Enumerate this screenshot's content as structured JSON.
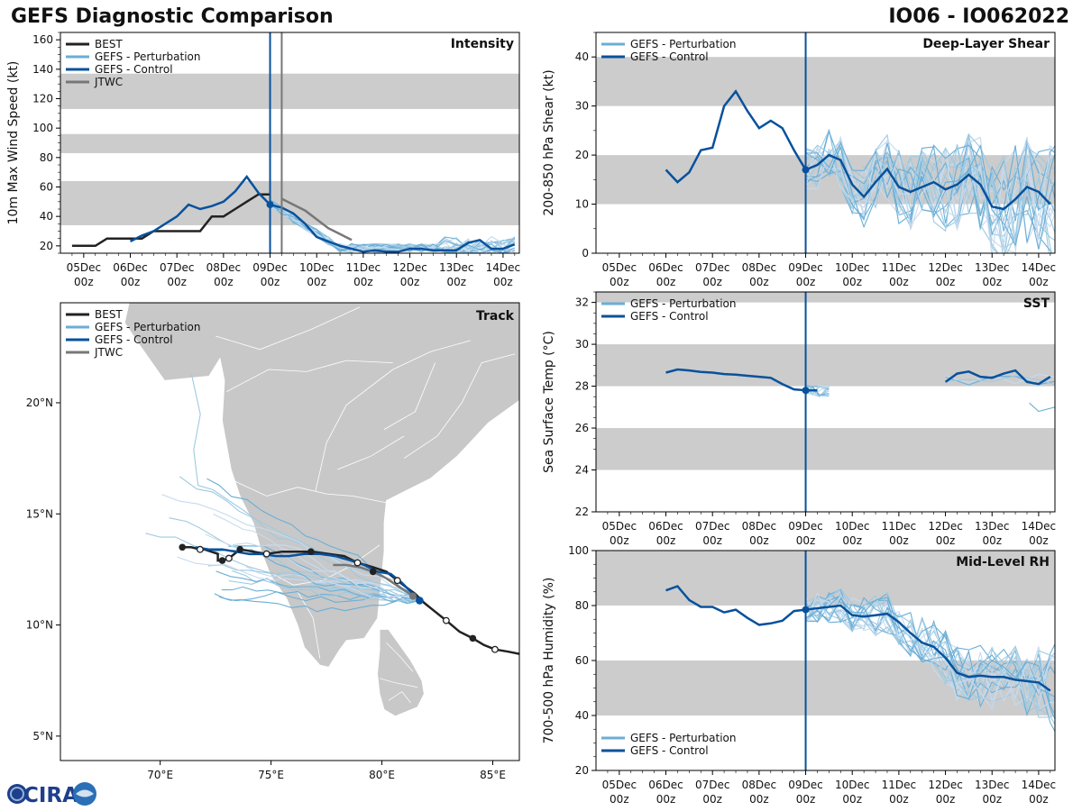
{
  "header": {
    "title": "GEFS Diagnostic Comparison",
    "storm_id": "IO06 - IO062022"
  },
  "logo": {
    "text": "CIRA"
  },
  "colors": {
    "best": "#222222",
    "perturbation": "#6baed6",
    "control": "#08519c",
    "jtwc": "#777777",
    "band": "#cccccc",
    "land": "#c8c8c8",
    "border": "#ffffff"
  },
  "time_axis": {
    "tick_labels": [
      [
        "05Dec",
        "00z"
      ],
      [
        "06Dec",
        "00z"
      ],
      [
        "07Dec",
        "00z"
      ],
      [
        "08Dec",
        "00z"
      ],
      [
        "09Dec",
        "00z"
      ],
      [
        "10Dec",
        "00z"
      ],
      [
        "11Dec",
        "00z"
      ],
      [
        "12Dec",
        "00z"
      ],
      [
        "13Dec",
        "00z"
      ],
      [
        "14Dec",
        "00z"
      ]
    ],
    "tick_days": [
      5,
      6,
      7,
      8,
      9,
      10,
      11,
      12,
      13,
      14
    ],
    "xlim": [
      4.5,
      14.35
    ],
    "init_day": 9.0
  },
  "chart_data": [
    {
      "id": "intensity",
      "type": "line",
      "title": "Intensity",
      "xlabel": "",
      "ylabel": "10m Max Wind Speed (kt)",
      "ylim": [
        15,
        165
      ],
      "yticks": [
        20,
        40,
        60,
        80,
        100,
        120,
        140,
        160
      ],
      "bands": [
        [
          34,
          64
        ],
        [
          83,
          96
        ],
        [
          113,
          137
        ]
      ],
      "vlines": [
        {
          "x": 9.0,
          "color": "control"
        },
        {
          "x": 9.25,
          "color": "jtwc"
        }
      ],
      "legend": [
        "BEST",
        "GEFS - Perturbation",
        "GEFS - Control",
        "JTWC"
      ],
      "series": [
        {
          "name": "BEST",
          "color": "best",
          "x": [
            4.75,
            5.0,
            5.25,
            5.5,
            5.75,
            6.0,
            6.25,
            6.5,
            6.75,
            7.0,
            7.25,
            7.5,
            7.75,
            8.0,
            8.25,
            8.5,
            8.75,
            9.0
          ],
          "values": [
            20,
            20,
            20,
            25,
            25,
            25,
            25,
            30,
            30,
            30,
            30,
            30,
            40,
            40,
            45,
            50,
            55,
            55
          ]
        },
        {
          "name": "GEFS - Control",
          "color": "control",
          "x": [
            6.0,
            6.25,
            6.5,
            6.75,
            7.0,
            7.25,
            7.5,
            7.75,
            8.0,
            8.25,
            8.5,
            8.75,
            9.0,
            9.25,
            9.5,
            9.75,
            10.0,
            10.25,
            10.5,
            10.75,
            11.0,
            11.25,
            11.5,
            11.75,
            12.0,
            12.25,
            12.5,
            12.75,
            13.0,
            13.25,
            13.5,
            13.75,
            14.0,
            14.25
          ],
          "values": [
            23,
            27,
            30,
            35,
            40,
            48,
            45,
            47,
            50,
            57,
            67,
            56,
            48,
            46,
            42,
            35,
            26,
            23,
            20,
            18,
            16,
            17,
            16,
            16,
            18,
            18,
            17,
            17,
            17,
            22,
            24,
            18,
            18,
            21
          ]
        },
        {
          "name": "JTWC",
          "color": "jtwc",
          "x": [
            9.25,
            9.5,
            9.75,
            10.0,
            10.25,
            10.5,
            10.75
          ],
          "values": [
            52,
            48,
            44,
            38,
            32,
            28,
            24
          ]
        }
      ],
      "perturbation_members": 20
    },
    {
      "id": "shear",
      "type": "line",
      "title": "Deep-Layer Shear",
      "xlabel": "",
      "ylabel": "200-850 hPa Shear (kt)",
      "ylim": [
        0,
        45
      ],
      "yticks": [
        0,
        10,
        20,
        30,
        40
      ],
      "bands": [
        [
          10,
          20
        ],
        [
          30,
          40
        ]
      ],
      "vlines": [
        {
          "x": 9.0,
          "color": "control"
        }
      ],
      "legend": [
        "GEFS - Perturbation",
        "GEFS - Control"
      ],
      "series": [
        {
          "name": "GEFS - Control",
          "color": "control",
          "x": [
            6.0,
            6.25,
            6.5,
            6.75,
            7.0,
            7.25,
            7.5,
            7.75,
            8.0,
            8.25,
            8.5,
            8.75,
            9.0,
            9.25,
            9.5,
            9.75,
            10.0,
            10.25,
            10.5,
            10.75,
            11.0,
            11.25,
            11.5,
            11.75,
            12.0,
            12.25,
            12.5,
            12.75,
            13.0,
            13.25,
            13.5,
            13.75,
            14.0,
            14.25
          ],
          "values": [
            17,
            14.5,
            16.5,
            21,
            21.5,
            30,
            33,
            29,
            25.5,
            27,
            25.5,
            21,
            17,
            18,
            20,
            19,
            14,
            11.5,
            14.5,
            17.2,
            13.5,
            12.5,
            13.5,
            14.5,
            13,
            14,
            16,
            14,
            9.5,
            9,
            11,
            13.5,
            12.5,
            10
          ]
        }
      ],
      "perturbation_members": 20
    },
    {
      "id": "sst",
      "type": "line",
      "title": "SST",
      "xlabel": "",
      "ylabel": "Sea Surface Temp (°C)",
      "ylim": [
        22,
        32.5
      ],
      "yticks": [
        22,
        24,
        26,
        28,
        30,
        32
      ],
      "bands": [
        [
          24,
          26
        ],
        [
          28,
          30
        ],
        [
          32,
          32.5
        ]
      ],
      "vlines": [
        {
          "x": 9.0,
          "color": "control"
        }
      ],
      "legend": [
        "GEFS - Perturbation",
        "GEFS - Control"
      ],
      "series": [
        {
          "name": "GEFS - Control",
          "color": "control",
          "x": [
            6.0,
            6.25,
            6.5,
            6.75,
            7.0,
            7.25,
            7.5,
            7.75,
            8.0,
            8.25,
            8.5,
            8.75,
            9.0,
            9.25
          ],
          "values": [
            28.65,
            28.8,
            28.75,
            28.68,
            28.65,
            28.58,
            28.55,
            28.5,
            28.45,
            28.4,
            28.1,
            27.85,
            27.8,
            27.8
          ]
        },
        {
          "name": "GEFS - Control",
          "color": "control",
          "x": [
            12.0,
            12.25,
            12.5,
            12.75,
            13.0,
            13.25,
            13.5,
            13.75,
            14.0,
            14.25
          ],
          "values": [
            28.2,
            28.6,
            28.7,
            28.45,
            28.4,
            28.6,
            28.75,
            28.2,
            28.1,
            28.45
          ]
        }
      ],
      "perturbation_members": 14
    },
    {
      "id": "rh",
      "type": "line",
      "title": "Mid-Level RH",
      "xlabel": "",
      "ylabel": "700-500 hPa Humidity (%)",
      "ylim": [
        20,
        100
      ],
      "yticks": [
        20,
        40,
        60,
        80,
        100
      ],
      "bands": [
        [
          40,
          60
        ],
        [
          80,
          100
        ]
      ],
      "vlines": [
        {
          "x": 9.0,
          "color": "control"
        }
      ],
      "legend": [
        "GEFS - Perturbation",
        "GEFS - Control"
      ],
      "series": [
        {
          "name": "GEFS - Control",
          "color": "control",
          "x": [
            6.0,
            6.25,
            6.5,
            6.75,
            7.0,
            7.25,
            7.5,
            7.75,
            8.0,
            8.25,
            8.5,
            8.75,
            9.0,
            9.25,
            9.5,
            9.75,
            10.0,
            10.25,
            10.5,
            10.75,
            11.0,
            11.25,
            11.5,
            11.75,
            12.0,
            12.25,
            12.5,
            12.75,
            13.0,
            13.25,
            13.5,
            13.75,
            14.0,
            14.25
          ],
          "values": [
            85.5,
            87,
            82,
            79.5,
            79.5,
            77.5,
            78.5,
            75.5,
            73,
            73.5,
            74.5,
            78,
            78.5,
            79,
            79.5,
            80,
            76.5,
            76,
            76.5,
            77,
            74,
            70,
            66.5,
            65,
            61,
            55.5,
            54,
            54.5,
            54,
            54,
            53,
            52.5,
            52,
            49
          ]
        }
      ],
      "perturbation_members": 20
    },
    {
      "id": "track",
      "type": "line",
      "title": "Track",
      "xlabel": "",
      "ylabel": "",
      "xlim": [
        65.5,
        86.2
      ],
      "ylim": [
        3.9,
        24.5
      ],
      "xticks": [
        70,
        75,
        80,
        85
      ],
      "xtick_labels": [
        "70°E",
        "75°E",
        "80°E",
        "85°E"
      ],
      "yticks": [
        5,
        10,
        15,
        20
      ],
      "ytick_labels": [
        "5°N",
        "10°N",
        "15°N",
        "20°N"
      ],
      "legend": [
        "BEST",
        "GEFS - Perturbation",
        "GEFS - Control",
        "JTWC"
      ],
      "series": [
        {
          "name": "BEST",
          "color": "best",
          "lon": [
            86.2,
            85.7,
            85.1,
            84.6,
            84.1,
            83.5,
            82.9,
            82.4,
            81.9,
            81.5,
            81.1,
            80.7,
            80.2,
            79.6,
            78.9,
            78.3,
            77.6,
            76.9,
            76.2,
            75.5,
            74.8,
            74.2,
            73.6,
            73.1,
            72.8,
            72.6,
            72.6,
            72.0,
            71.8,
            71.4,
            71.0
          ],
          "lat": [
            8.7,
            8.8,
            8.9,
            9.1,
            9.4,
            9.7,
            10.2,
            10.6,
            11.0,
            11.4,
            11.7,
            12.0,
            12.4,
            12.6,
            12.8,
            13.1,
            13.2,
            13.3,
            13.3,
            13.3,
            13.2,
            13.3,
            13.4,
            13.0,
            12.9,
            12.9,
            13.2,
            13.4,
            13.4,
            13.5,
            13.5
          ]
        },
        {
          "name": "GEFS - Control",
          "color": "control",
          "lon": [
            81.7,
            81.3,
            80.9,
            80.4,
            79.8,
            79.2,
            78.6,
            77.9,
            77.2,
            76.5,
            75.8,
            75.2,
            74.6,
            74.0,
            73.4,
            72.8,
            72.2,
            71.6
          ],
          "lat": [
            11.1,
            11.5,
            11.9,
            12.3,
            12.4,
            12.7,
            12.9,
            13.1,
            13.2,
            13.2,
            13.1,
            13.1,
            13.2,
            13.2,
            13.3,
            13.4,
            13.4,
            13.5
          ]
        },
        {
          "name": "JTWC",
          "color": "jtwc",
          "lon": [
            81.4,
            80.8,
            80.2,
            79.6,
            79.0,
            78.4,
            77.8
          ],
          "lat": [
            11.3,
            11.7,
            12.1,
            12.4,
            12.6,
            12.7,
            12.7
          ]
        }
      ],
      "best_markers_filled": [
        [
          71.0,
          13.5
        ],
        [
          72.8,
          12.9
        ],
        [
          73.6,
          13.4
        ],
        [
          76.8,
          13.3
        ],
        [
          79.6,
          12.4
        ],
        [
          84.1,
          9.4
        ]
      ],
      "best_markers_open": [
        [
          71.8,
          13.4
        ],
        [
          73.1,
          13.0
        ],
        [
          74.8,
          13.2
        ],
        [
          78.9,
          12.8
        ],
        [
          80.7,
          12.0
        ],
        [
          82.9,
          10.2
        ],
        [
          85.1,
          8.9
        ]
      ],
      "control_marker": [
        81.7,
        11.1
      ],
      "jtwc_marker": [
        81.4,
        11.3
      ],
      "perturbation_members": 20
    }
  ]
}
